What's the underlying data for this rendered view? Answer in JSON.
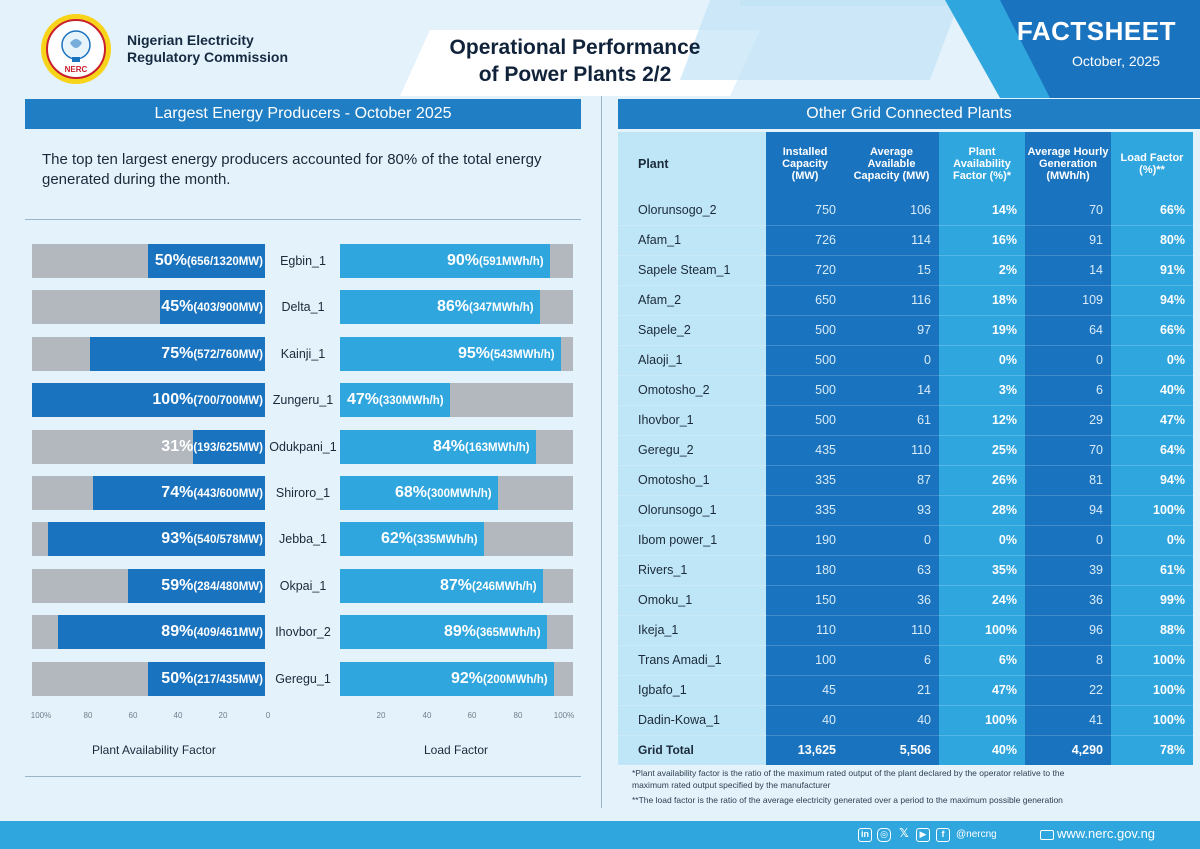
{
  "header": {
    "org_line1": "Nigerian Electricity",
    "org_line2": "Regulatory Commission",
    "logo_ring_text": "NIGERIAN ELECTRICITY REGULATORY COMMISSION",
    "logo_acronym": "NERC",
    "title_line1": "Operational Performance",
    "title_line2": "of Power Plants 2/2",
    "factsheet": "FACTSHEET",
    "date": "October, 2025"
  },
  "left": {
    "heading": "Largest Energy Producers - October 2025",
    "intro": "The top ten largest energy producers accounted for 80% of the total energy generated during the month.",
    "plants": [
      {
        "name": "Egbin_1",
        "paf_pct": "50%",
        "paf_detail": "(656/1320MW)",
        "paf": 0.5,
        "lf_pct": "90%",
        "lf_detail": "(591MWh/h)",
        "lf": 0.9
      },
      {
        "name": "Delta_1",
        "paf_pct": "45%",
        "paf_detail": "(403/900MW)",
        "paf": 0.45,
        "lf_pct": "86%",
        "lf_detail": "(347MWh/h)",
        "lf": 0.86
      },
      {
        "name": "Kainji_1",
        "paf_pct": "75%",
        "paf_detail": "(572/760MW)",
        "paf": 0.75,
        "lf_pct": "95%",
        "lf_detail": "(543MWh/h)",
        "lf": 0.95
      },
      {
        "name": "Zungeru_1",
        "paf_pct": "100%",
        "paf_detail": "(700/700MW)",
        "paf": 1.0,
        "lf_pct": "47%",
        "lf_detail": "(330MWh/h)",
        "lf": 0.47
      },
      {
        "name": "Odukpani_1",
        "paf_pct": "31%",
        "paf_detail": "(193/625MW)",
        "paf": 0.31,
        "lf_pct": "84%",
        "lf_detail": "(163MWh/h)",
        "lf": 0.84
      },
      {
        "name": "Shiroro_1",
        "paf_pct": "74%",
        "paf_detail": "(443/600MW)",
        "paf": 0.74,
        "lf_pct": "68%",
        "lf_detail": "(300MWh/h)",
        "lf": 0.68
      },
      {
        "name": "Jebba_1",
        "paf_pct": "93%",
        "paf_detail": "(540/578MW)",
        "paf": 0.93,
        "lf_pct": "62%",
        "lf_detail": "(335MWh/h)",
        "lf": 0.62
      },
      {
        "name": "Okpai_1",
        "paf_pct": "59%",
        "paf_detail": "(284/480MW)",
        "paf": 0.59,
        "lf_pct": "87%",
        "lf_detail": "(246MWh/h)",
        "lf": 0.87
      },
      {
        "name": "Ihovbor_2",
        "paf_pct": "89%",
        "paf_detail": "(409/461MW)",
        "paf": 0.89,
        "lf_pct": "89%",
        "lf_detail": "(365MWh/h)",
        "lf": 0.89
      },
      {
        "name": "Geregu_1",
        "paf_pct": "50%",
        "paf_detail": "(217/435MW)",
        "paf": 0.5,
        "lf_pct": "92%",
        "lf_detail": "(200MWh/h)",
        "lf": 0.92
      }
    ],
    "left_ticks": [
      "100%",
      "80",
      "60",
      "40",
      "20",
      "0"
    ],
    "right_ticks": [
      "20",
      "40",
      "60",
      "80",
      "100%"
    ],
    "left_caption": "Plant Availability Factor",
    "right_caption": "Load Factor"
  },
  "right": {
    "heading": "Other Grid Connected Plants",
    "columns": [
      "Plant",
      "Installed Capacity (MW)",
      "Average Available Capacity (MW)",
      "Plant Availability Factor (%)*",
      "Average Hourly Generation (MWh/h)",
      "Load Factor (%)**"
    ],
    "rows": [
      [
        "Olorunsogo_2",
        "750",
        "106",
        "14%",
        "70",
        "66%"
      ],
      [
        "Afam_1",
        "726",
        "114",
        "16%",
        "91",
        "80%"
      ],
      [
        "Sapele Steam_1",
        "720",
        "15",
        "2%",
        "14",
        "91%"
      ],
      [
        " Afam_2",
        "650",
        "116",
        "18%",
        "109",
        "94%"
      ],
      [
        "Sapele_2",
        "500",
        "97",
        "19%",
        "64",
        "66%"
      ],
      [
        "Alaoji_1",
        "500",
        "0",
        "0%",
        "0",
        "0%"
      ],
      [
        "Omotosho_2",
        "500",
        "14",
        "3%",
        "6",
        "40%"
      ],
      [
        "Ihovbor_1",
        "500",
        "61",
        "12%",
        "29",
        "47%"
      ],
      [
        "Geregu_2",
        "435",
        "110",
        "25%",
        "70",
        "64%"
      ],
      [
        "Omotosho_1",
        "335",
        "87",
        "26%",
        "81",
        "94%"
      ],
      [
        "Olorunsogo_1",
        "335",
        "93",
        "28%",
        "94",
        "100%"
      ],
      [
        "Ibom power_1",
        "190",
        "0",
        "0%",
        "0",
        "0%"
      ],
      [
        "Rivers_1",
        "180",
        "63",
        "35%",
        "39",
        "61%"
      ],
      [
        "Omoku_1",
        "150",
        "36",
        "24%",
        "36",
        "99%"
      ],
      [
        "Ikeja_1",
        "110",
        "110",
        "100%",
        "96",
        "88%"
      ],
      [
        "Trans Amadi_1",
        "100",
        "6",
        "6%",
        "8",
        "100%"
      ],
      [
        "Igbafo_1",
        "45",
        "21",
        "47%",
        "22",
        "100%"
      ],
      [
        "Dadin-Kowa_1",
        "40",
        "40",
        "100%",
        "41",
        "100%"
      ]
    ],
    "total": [
      "Grid Total",
      "13,625",
      "5,506",
      "40%",
      "4,290",
      "78%"
    ],
    "note1": "*Plant availability factor is the ratio of the maximum rated output of the plant declared by the operator relative to the maximum rated output specified by the manufacturer",
    "note2": "**The load factor is the ratio of the average electricity generated over a period to the maximum possible generation"
  },
  "footer": {
    "handle": "@nercng",
    "website": "www.nerc.gov.ng"
  },
  "colors": {
    "dark_blue": "#1a73bf",
    "mid_blue": "#2fa6de",
    "light_blue": "#bfe6f6",
    "grey_track": "#b3b8bf"
  }
}
